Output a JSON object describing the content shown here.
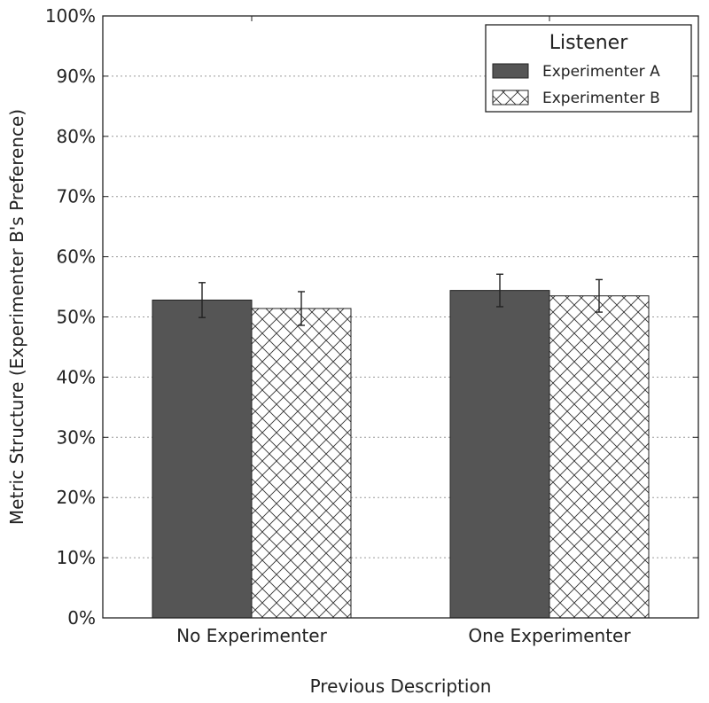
{
  "chart_data": {
    "type": "bar",
    "title": "",
    "xlabel": "Previous Description",
    "ylabel": "Metric Structure (Experimenter B's Preference)",
    "ylim": [
      0,
      100
    ],
    "yticks": [
      "0%",
      "10%",
      "20%",
      "30%",
      "40%",
      "50%",
      "60%",
      "70%",
      "80%",
      "90%",
      "100%"
    ],
    "ytick_values": [
      0,
      10,
      20,
      30,
      40,
      50,
      60,
      70,
      80,
      90,
      100
    ],
    "categories": [
      "No Experimenter",
      "One Experimenter"
    ],
    "grid": true,
    "legend": {
      "title": "Listener",
      "placement": "top-right"
    },
    "series": [
      {
        "name": "Experimenter A",
        "style": "solid",
        "color": "#555555",
        "values": [
          52.8,
          54.4
        ],
        "errors": [
          2.9,
          2.7
        ]
      },
      {
        "name": "Experimenter B",
        "style": "crosshatch",
        "color": "#ffffff",
        "values": [
          51.4,
          53.5
        ],
        "errors": [
          2.8,
          2.7
        ]
      }
    ]
  }
}
